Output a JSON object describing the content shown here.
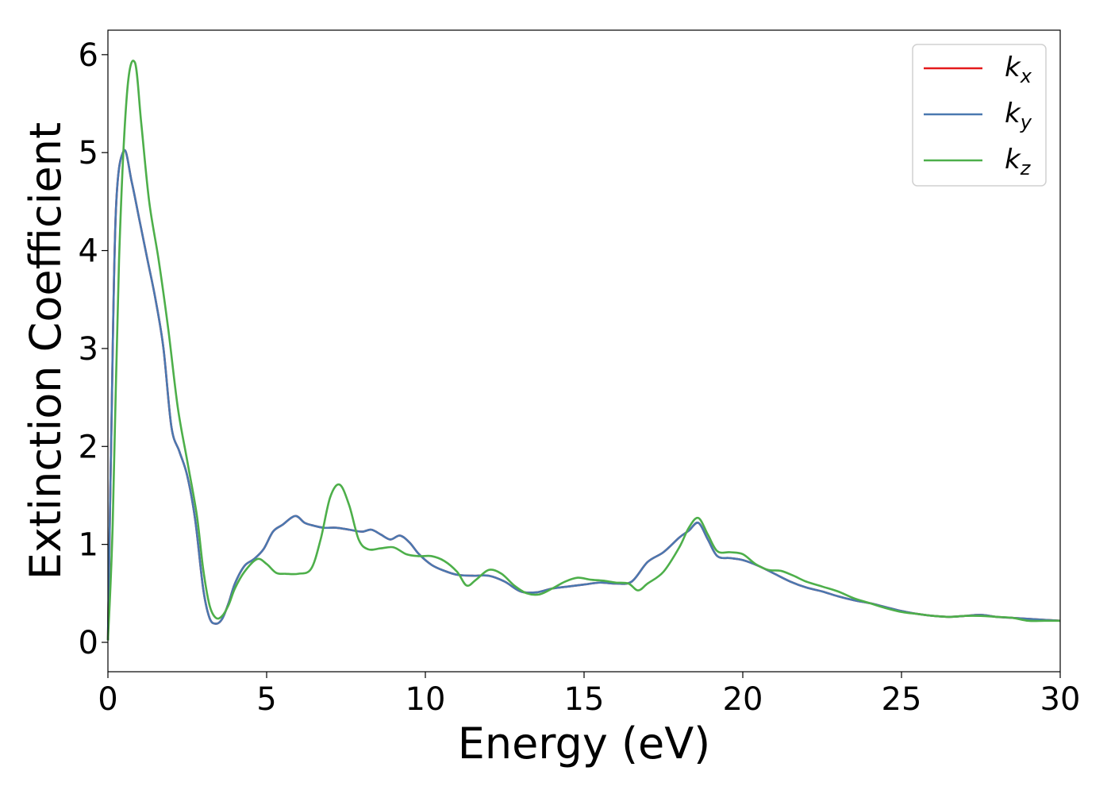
{
  "chart_data": {
    "type": "line",
    "xlabel": "Energy (eV)",
    "ylabel": "Extinction Coefficient",
    "xlim": [
      0,
      30
    ],
    "ylim": [
      -0.3,
      6.25
    ],
    "xticks": [
      0,
      5,
      10,
      15,
      20,
      25,
      30
    ],
    "yticks": [
      0,
      1,
      2,
      3,
      4,
      5,
      6
    ],
    "grid": false,
    "legend_position": "top-right",
    "series": [
      {
        "name": "k",
        "subscript": "x",
        "color": "#e41a1c",
        "x": [
          0,
          0.1,
          0.25,
          0.5,
          0.75,
          1.0,
          1.25,
          1.5,
          1.75,
          2.0,
          2.25,
          2.5,
          2.75,
          3.0,
          3.2,
          3.4,
          3.6,
          3.8,
          4.0,
          4.3,
          4.6,
          4.9,
          5.2,
          5.5,
          5.9,
          6.2,
          6.5,
          6.8,
          7.2,
          7.6,
          8.0,
          8.3,
          8.6,
          8.9,
          9.2,
          9.5,
          9.8,
          10.2,
          10.6,
          11.0,
          11.5,
          12.0,
          12.5,
          13.0,
          13.5,
          14.0,
          14.5,
          15.0,
          15.5,
          16.0,
          16.5,
          17.0,
          17.5,
          18.0,
          18.3,
          18.6,
          18.9,
          19.2,
          19.6,
          20.0,
          20.5,
          21.0,
          21.5,
          22.0,
          22.5,
          23.0,
          23.5,
          24.0,
          24.5,
          25.0,
          25.5,
          26.0,
          26.5,
          27.0,
          27.5,
          28.0,
          28.5,
          29.0,
          29.5,
          30.0
        ],
        "values": [
          0.02,
          2.0,
          4.4,
          5.02,
          4.7,
          4.3,
          3.9,
          3.5,
          3.0,
          2.2,
          1.95,
          1.7,
          1.25,
          0.55,
          0.25,
          0.19,
          0.24,
          0.4,
          0.6,
          0.78,
          0.85,
          0.95,
          1.13,
          1.2,
          1.29,
          1.22,
          1.19,
          1.17,
          1.17,
          1.15,
          1.13,
          1.15,
          1.1,
          1.05,
          1.09,
          1.02,
          0.9,
          0.79,
          0.73,
          0.69,
          0.68,
          0.68,
          0.62,
          0.52,
          0.51,
          0.55,
          0.57,
          0.59,
          0.61,
          0.6,
          0.62,
          0.82,
          0.92,
          1.07,
          1.14,
          1.22,
          1.05,
          0.88,
          0.86,
          0.84,
          0.78,
          0.7,
          0.62,
          0.56,
          0.52,
          0.47,
          0.43,
          0.4,
          0.36,
          0.32,
          0.29,
          0.27,
          0.26,
          0.27,
          0.28,
          0.26,
          0.25,
          0.24,
          0.23,
          0.22
        ]
      },
      {
        "name": "k",
        "subscript": "y",
        "color": "#4a78b0",
        "x": [
          0,
          0.1,
          0.25,
          0.5,
          0.75,
          1.0,
          1.25,
          1.5,
          1.75,
          2.0,
          2.25,
          2.5,
          2.75,
          3.0,
          3.2,
          3.4,
          3.6,
          3.8,
          4.0,
          4.3,
          4.6,
          4.9,
          5.2,
          5.5,
          5.9,
          6.2,
          6.5,
          6.8,
          7.2,
          7.6,
          8.0,
          8.3,
          8.6,
          8.9,
          9.2,
          9.5,
          9.8,
          10.2,
          10.6,
          11.0,
          11.5,
          12.0,
          12.5,
          13.0,
          13.5,
          14.0,
          14.5,
          15.0,
          15.5,
          16.0,
          16.5,
          17.0,
          17.5,
          18.0,
          18.3,
          18.6,
          18.9,
          19.2,
          19.6,
          20.0,
          20.5,
          21.0,
          21.5,
          22.0,
          22.5,
          23.0,
          23.5,
          24.0,
          24.5,
          25.0,
          25.5,
          26.0,
          26.5,
          27.0,
          27.5,
          28.0,
          28.5,
          29.0,
          29.5,
          30.0
        ],
        "values": [
          0.02,
          2.0,
          4.4,
          5.02,
          4.7,
          4.3,
          3.9,
          3.5,
          3.0,
          2.2,
          1.95,
          1.7,
          1.25,
          0.55,
          0.25,
          0.19,
          0.24,
          0.4,
          0.6,
          0.78,
          0.85,
          0.95,
          1.13,
          1.2,
          1.29,
          1.22,
          1.19,
          1.17,
          1.17,
          1.15,
          1.13,
          1.15,
          1.1,
          1.05,
          1.09,
          1.02,
          0.9,
          0.79,
          0.73,
          0.69,
          0.68,
          0.68,
          0.62,
          0.52,
          0.51,
          0.55,
          0.57,
          0.59,
          0.61,
          0.6,
          0.62,
          0.82,
          0.92,
          1.07,
          1.14,
          1.22,
          1.05,
          0.88,
          0.86,
          0.84,
          0.78,
          0.7,
          0.62,
          0.56,
          0.52,
          0.47,
          0.43,
          0.4,
          0.36,
          0.32,
          0.29,
          0.27,
          0.26,
          0.27,
          0.28,
          0.26,
          0.25,
          0.24,
          0.23,
          0.22
        ]
      },
      {
        "name": "k",
        "subscript": "z",
        "color": "#4daf4a",
        "x": [
          0,
          0.15,
          0.35,
          0.6,
          0.85,
          1.05,
          1.3,
          1.6,
          1.9,
          2.2,
          2.5,
          2.8,
          3.0,
          3.2,
          3.4,
          3.6,
          3.8,
          4.0,
          4.3,
          4.7,
          5.0,
          5.3,
          5.6,
          6.0,
          6.4,
          6.7,
          7.0,
          7.3,
          7.6,
          7.9,
          8.2,
          8.6,
          9.0,
          9.4,
          9.8,
          10.2,
          10.6,
          11.0,
          11.3,
          11.6,
          12.0,
          12.4,
          12.8,
          13.2,
          13.6,
          14.0,
          14.4,
          14.8,
          15.2,
          15.6,
          16.0,
          16.4,
          16.7,
          17.0,
          17.5,
          18.0,
          18.3,
          18.6,
          18.9,
          19.2,
          19.6,
          20.0,
          20.4,
          20.8,
          21.2,
          21.6,
          22.0,
          22.5,
          23.0,
          23.5,
          24.0,
          24.5,
          25.0,
          25.5,
          26.0,
          26.5,
          27.0,
          27.5,
          28.0,
          28.5,
          29.0,
          29.5,
          30.0
        ],
        "values": [
          0.02,
          1.2,
          3.9,
          5.6,
          5.92,
          5.3,
          4.5,
          3.9,
          3.2,
          2.4,
          1.85,
          1.3,
          0.75,
          0.38,
          0.25,
          0.27,
          0.38,
          0.55,
          0.72,
          0.85,
          0.8,
          0.71,
          0.7,
          0.7,
          0.75,
          1.05,
          1.48,
          1.61,
          1.4,
          1.05,
          0.95,
          0.96,
          0.97,
          0.9,
          0.88,
          0.88,
          0.83,
          0.72,
          0.58,
          0.64,
          0.74,
          0.7,
          0.58,
          0.5,
          0.49,
          0.55,
          0.62,
          0.66,
          0.64,
          0.63,
          0.61,
          0.6,
          0.53,
          0.6,
          0.72,
          0.97,
          1.17,
          1.27,
          1.1,
          0.93,
          0.92,
          0.9,
          0.8,
          0.74,
          0.73,
          0.68,
          0.62,
          0.57,
          0.52,
          0.45,
          0.4,
          0.35,
          0.31,
          0.29,
          0.27,
          0.26,
          0.27,
          0.27,
          0.26,
          0.25,
          0.22,
          0.22,
          0.22
        ]
      }
    ]
  }
}
